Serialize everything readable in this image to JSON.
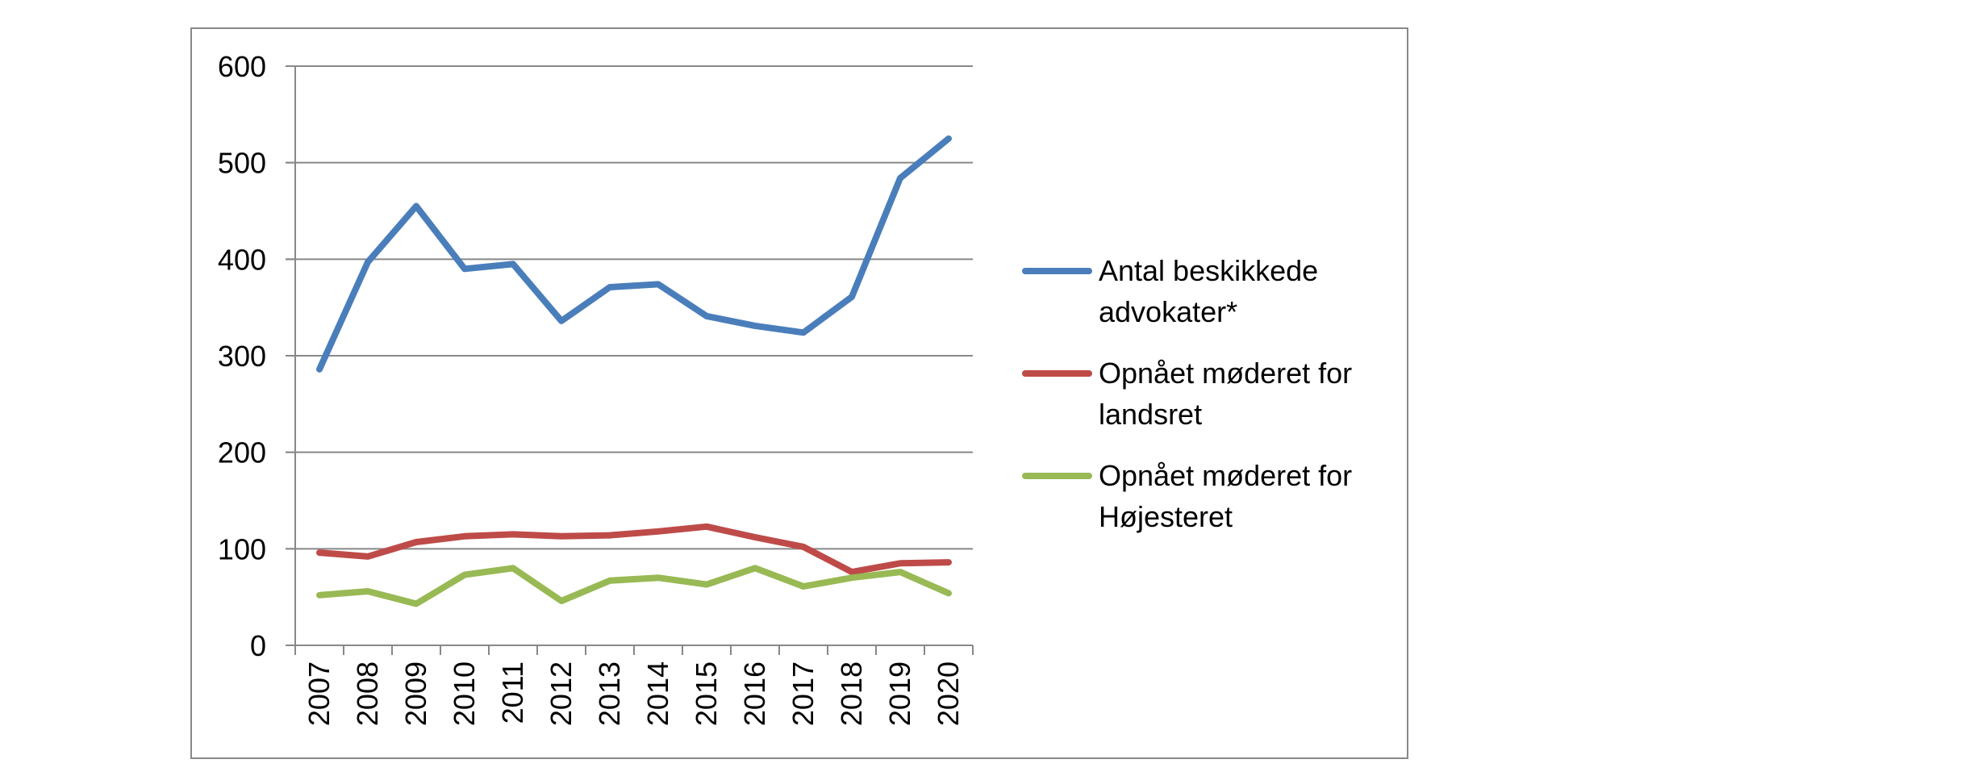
{
  "chart_data": {
    "type": "line",
    "title": "",
    "xlabel": "",
    "ylabel": "",
    "categories": [
      "2007",
      "2008",
      "2009",
      "2010",
      "2011",
      "2012",
      "2013",
      "2014",
      "2015",
      "2016",
      "2017",
      "2018",
      "2019",
      "2020"
    ],
    "ylim": [
      0,
      600
    ],
    "yticks": [
      "0",
      "100",
      "200",
      "300",
      "400",
      "500",
      "600"
    ],
    "grid": true,
    "legend_position": "right",
    "series": [
      {
        "name_lines": [
          "Antal beskikkede",
          "advokater*"
        ],
        "color": "#4a7ebb",
        "values": [
          286,
          397,
          455,
          390,
          395,
          336,
          371,
          374,
          341,
          331,
          324,
          361,
          484,
          525
        ]
      },
      {
        "name_lines": [
          "Opnået møderet for",
          "landsret"
        ],
        "color": "#be4b48",
        "values": [
          96,
          92,
          107,
          113,
          115,
          113,
          114,
          118,
          123,
          112,
          102,
          76,
          85,
          86
        ]
      },
      {
        "name_lines": [
          "Opnået møderet for",
          "Højesteret"
        ],
        "color": "#98b954",
        "values": [
          52,
          56,
          43,
          73,
          80,
          46,
          67,
          70,
          63,
          80,
          61,
          70,
          76,
          54
        ]
      }
    ]
  }
}
